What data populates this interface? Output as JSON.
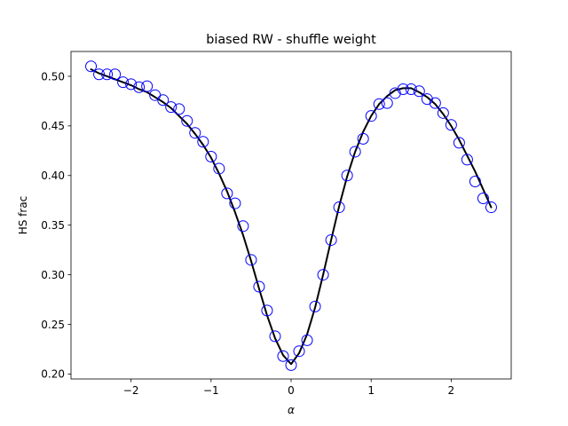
{
  "chart_data": {
    "type": "line",
    "title": "biased RW - shuffle weight",
    "xlabel": "α",
    "ylabel": "HS frac",
    "xlim": [
      -2.75,
      2.75
    ],
    "ylim": [
      0.195,
      0.525
    ],
    "xticks": [
      -2,
      -1,
      0,
      1,
      2
    ],
    "xtick_labels": [
      "−2",
      "−1",
      "0",
      "1",
      "2"
    ],
    "yticks": [
      0.2,
      0.25,
      0.3,
      0.35,
      0.4,
      0.45,
      0.5
    ],
    "ytick_labels": [
      "0.20",
      "0.25",
      "0.30",
      "0.35",
      "0.40",
      "0.45",
      "0.50"
    ],
    "grid": false,
    "series": [
      {
        "kind": "scatter",
        "marker": "open-circle",
        "color": "#0000ff",
        "x": [
          -2.5,
          -2.4,
          -2.3,
          -2.2,
          -2.1,
          -2.0,
          -1.9,
          -1.8,
          -1.7,
          -1.6,
          -1.5,
          -1.4,
          -1.3,
          -1.2,
          -1.1,
          -1.0,
          -0.9,
          -0.8,
          -0.7,
          -0.6,
          -0.5,
          -0.4,
          -0.3,
          -0.2,
          -0.1,
          0.0,
          0.1,
          0.2,
          0.3,
          0.4,
          0.5,
          0.6,
          0.7,
          0.8,
          0.9,
          1.0,
          1.1,
          1.2,
          1.3,
          1.4,
          1.5,
          1.6,
          1.7,
          1.8,
          1.9,
          2.0,
          2.1,
          2.2,
          2.3,
          2.4,
          2.5
        ],
        "y": [
          0.51,
          0.502,
          0.502,
          0.502,
          0.494,
          0.492,
          0.489,
          0.49,
          0.481,
          0.476,
          0.469,
          0.467,
          0.455,
          0.443,
          0.434,
          0.419,
          0.407,
          0.382,
          0.372,
          0.349,
          0.315,
          0.288,
          0.264,
          0.238,
          0.218,
          0.209,
          0.223,
          0.234,
          0.268,
          0.3,
          0.335,
          0.368,
          0.4,
          0.424,
          0.437,
          0.46,
          0.472,
          0.473,
          0.483,
          0.487,
          0.487,
          0.485,
          0.477,
          0.473,
          0.463,
          0.451,
          0.433,
          0.416,
          0.394,
          0.377,
          0.368
        ]
      },
      {
        "kind": "line",
        "color": "#000000",
        "x": [
          -2.5,
          -2.4,
          -2.3,
          -2.2,
          -2.1,
          -2.0,
          -1.9,
          -1.8,
          -1.7,
          -1.6,
          -1.5,
          -1.4,
          -1.3,
          -1.2,
          -1.1,
          -1.0,
          -0.9,
          -0.8,
          -0.7,
          -0.6,
          -0.5,
          -0.4,
          -0.3,
          -0.2,
          -0.1,
          0.0,
          0.1,
          0.2,
          0.3,
          0.4,
          0.5,
          0.6,
          0.7,
          0.8,
          0.9,
          1.0,
          1.1,
          1.2,
          1.3,
          1.4,
          1.5,
          1.6,
          1.7,
          1.8,
          1.9,
          2.0,
          2.1,
          2.2,
          2.3,
          2.4,
          2.5
        ],
        "y": [
          0.507,
          0.503,
          0.5,
          0.497,
          0.494,
          0.491,
          0.487,
          0.484,
          0.479,
          0.474,
          0.468,
          0.46,
          0.452,
          0.442,
          0.431,
          0.418,
          0.402,
          0.384,
          0.363,
          0.34,
          0.314,
          0.286,
          0.259,
          0.236,
          0.219,
          0.21,
          0.221,
          0.24,
          0.267,
          0.3,
          0.335,
          0.369,
          0.399,
          0.424,
          0.444,
          0.46,
          0.472,
          0.48,
          0.486,
          0.488,
          0.488,
          0.484,
          0.479,
          0.472,
          0.462,
          0.45,
          0.436,
          0.42,
          0.404,
          0.386,
          0.368
        ]
      }
    ]
  }
}
